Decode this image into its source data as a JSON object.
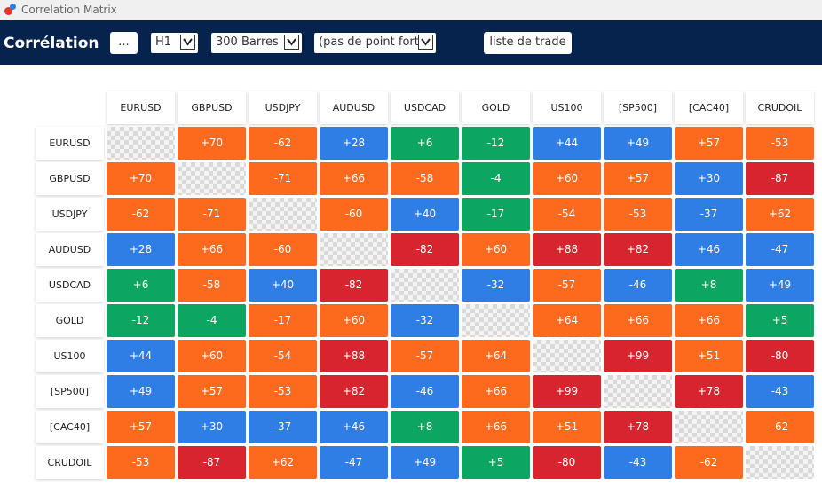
{
  "window": {
    "title": "Correlation Matrix"
  },
  "toolbar": {
    "heading": "Corrélation",
    "menu_button": "...",
    "timeframe": "H1",
    "bars": "300 Barres",
    "point_fort": "(pas de point fort)",
    "list_button": "liste de trade"
  },
  "matrix": {
    "symbols": [
      "EURUSD",
      "GBPUSD",
      "USDJPY",
      "AUDUSD",
      "USDCAD",
      "GOLD",
      "US100",
      "[SP500]",
      "[CAC40]",
      "CRUDOIL"
    ],
    "rows": [
      [
        "",
        "+70",
        "-62",
        "+28",
        "+6",
        "-12",
        "+44",
        "+49",
        "+57",
        "-53"
      ],
      [
        "+70",
        "",
        "-71",
        "+66",
        "-58",
        "-4",
        "+60",
        "+57",
        "+30",
        "-87"
      ],
      [
        "-62",
        "-71",
        "",
        "-60",
        "+40",
        "-17",
        "-54",
        "-53",
        "-37",
        "+62"
      ],
      [
        "+28",
        "+66",
        "-60",
        "",
        "-82",
        "+60",
        "+88",
        "+82",
        "+46",
        "-47"
      ],
      [
        "+6",
        "-58",
        "+40",
        "-82",
        "",
        "-32",
        "-57",
        "-46",
        "+8",
        "+49"
      ],
      [
        "-12",
        "-4",
        "-17",
        "+60",
        "-32",
        "",
        "+64",
        "+66",
        "+66",
        "+5"
      ],
      [
        "+44",
        "+60",
        "-54",
        "+88",
        "-57",
        "+64",
        "",
        "+99",
        "+51",
        "-80"
      ],
      [
        "+49",
        "+57",
        "-53",
        "+82",
        "-46",
        "+66",
        "+99",
        "",
        "+78",
        "-43"
      ],
      [
        "+57",
        "+30",
        "-37",
        "+46",
        "+8",
        "+66",
        "+51",
        "+78",
        "",
        "-62"
      ],
      [
        "-53",
        "-87",
        "+62",
        "-47",
        "+49",
        "+5",
        "-80",
        "-43",
        "-62",
        ""
      ]
    ],
    "colors": [
      [
        "diag",
        "orange",
        "orange",
        "blue",
        "green",
        "green",
        "blue",
        "blue",
        "orange",
        "orange"
      ],
      [
        "orange",
        "diag",
        "orange",
        "orange",
        "orange",
        "green",
        "orange",
        "orange",
        "blue",
        "red"
      ],
      [
        "orange",
        "orange",
        "diag",
        "orange",
        "blue",
        "green",
        "orange",
        "orange",
        "blue",
        "orange"
      ],
      [
        "blue",
        "orange",
        "orange",
        "diag",
        "red",
        "orange",
        "red",
        "red",
        "blue",
        "blue"
      ],
      [
        "green",
        "orange",
        "blue",
        "red",
        "diag",
        "blue",
        "orange",
        "blue",
        "green",
        "blue"
      ],
      [
        "green",
        "green",
        "orange",
        "orange",
        "blue",
        "diag",
        "orange",
        "orange",
        "orange",
        "green"
      ],
      [
        "blue",
        "orange",
        "orange",
        "red",
        "orange",
        "orange",
        "diag",
        "red",
        "orange",
        "red"
      ],
      [
        "blue",
        "orange",
        "orange",
        "red",
        "blue",
        "orange",
        "red",
        "diag",
        "red",
        "blue"
      ],
      [
        "orange",
        "blue",
        "blue",
        "blue",
        "green",
        "orange",
        "orange",
        "red",
        "diag",
        "orange"
      ],
      [
        "orange",
        "red",
        "orange",
        "blue",
        "blue",
        "green",
        "red",
        "blue",
        "orange",
        "diag"
      ]
    ]
  },
  "palette": {
    "orange": "#fd6a1e",
    "blue": "#2f7ee6",
    "green": "#0ca562",
    "red": "#d8242f",
    "header_bg": "#06234e"
  }
}
